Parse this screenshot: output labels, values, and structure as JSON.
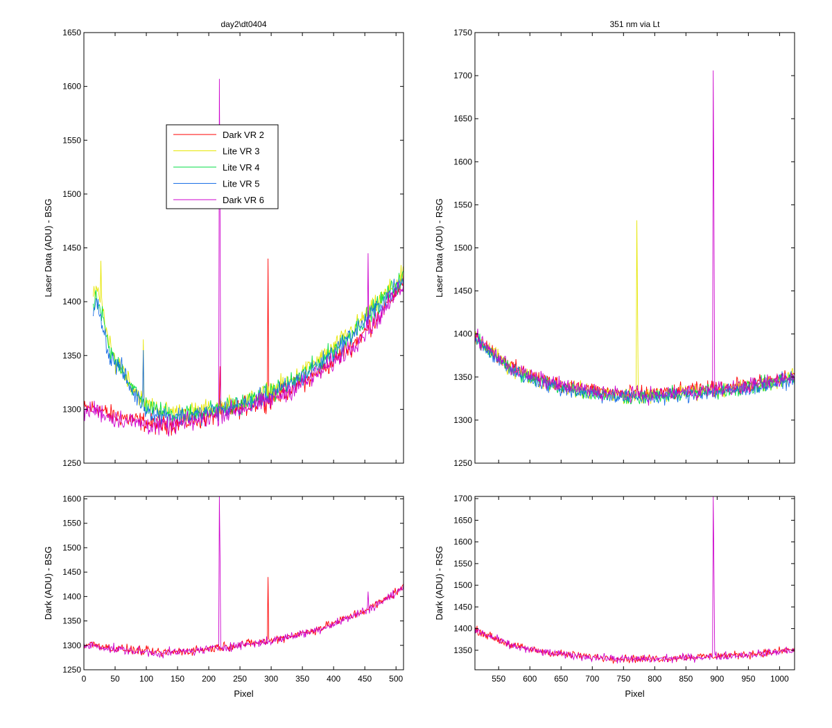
{
  "chart_data": [
    {
      "id": "top-left",
      "type": "line",
      "title": "day2\\dt0404",
      "xlabel": "",
      "ylabel": "Laser Data (ADU) - BSG",
      "xlim": [
        0,
        512
      ],
      "ylim": [
        1250,
        1650
      ],
      "yticks": [
        1250,
        1300,
        1350,
        1400,
        1450,
        1500,
        1550,
        1600,
        1650
      ],
      "xticks": [
        0,
        50,
        100,
        150,
        200,
        250,
        300,
        350,
        400,
        450,
        500
      ],
      "xtick_labels_visible": false,
      "legend": {
        "placement": "upper-center-left",
        "entries": [
          "Dark VR 2",
          "Lite VR 3",
          "Lite VR 4",
          "Lite VR 5",
          "Dark VR 6"
        ]
      },
      "series": [
        {
          "name": "Dark VR 2",
          "color": "#ff0000",
          "x": [
            0,
            20,
            40,
            60,
            80,
            100,
            120,
            140,
            160,
            180,
            200,
            220,
            240,
            260,
            280,
            300,
            320,
            340,
            360,
            380,
            400,
            420,
            440,
            460,
            480,
            500,
            512
          ],
          "y": [
            1300,
            1302,
            1295,
            1293,
            1290,
            1288,
            1285,
            1286,
            1288,
            1290,
            1293,
            1297,
            1300,
            1303,
            1306,
            1310,
            1316,
            1322,
            1328,
            1336,
            1345,
            1355,
            1366,
            1378,
            1392,
            1410,
            1420
          ],
          "spikes": [
            [
              295,
              1440
            ],
            [
              218,
              1340
            ]
          ]
        },
        {
          "name": "Lite VR 3",
          "color": "#e6e600",
          "x": [
            15,
            20,
            30,
            40,
            50,
            60,
            70,
            80,
            90,
            100,
            120,
            140,
            160,
            180,
            200,
            220,
            240,
            260,
            280,
            300,
            320,
            340,
            360,
            380,
            400,
            420,
            440,
            460,
            480,
            500,
            512
          ],
          "y": [
            1405,
            1410,
            1395,
            1360,
            1345,
            1340,
            1330,
            1320,
            1312,
            1305,
            1300,
            1298,
            1297,
            1298,
            1300,
            1302,
            1305,
            1308,
            1312,
            1318,
            1323,
            1330,
            1338,
            1347,
            1357,
            1368,
            1380,
            1392,
            1405,
            1418,
            1425
          ],
          "spikes": [
            [
              27,
              1438
            ],
            [
              95,
              1365
            ]
          ]
        },
        {
          "name": "Lite VR 4",
          "color": "#00dd44",
          "x": [
            15,
            20,
            30,
            40,
            50,
            60,
            70,
            80,
            90,
            100,
            120,
            140,
            160,
            180,
            200,
            220,
            240,
            260,
            280,
            300,
            320,
            340,
            360,
            380,
            400,
            420,
            440,
            460,
            480,
            500,
            512
          ],
          "y": [
            1395,
            1402,
            1385,
            1355,
            1345,
            1340,
            1328,
            1318,
            1310,
            1303,
            1298,
            1296,
            1296,
            1297,
            1299,
            1301,
            1304,
            1307,
            1311,
            1316,
            1321,
            1328,
            1336,
            1345,
            1355,
            1366,
            1378,
            1390,
            1403,
            1415,
            1422
          ],
          "spikes": []
        },
        {
          "name": "Lite VR 5",
          "color": "#1a6ee6",
          "x": [
            15,
            20,
            30,
            40,
            50,
            60,
            70,
            80,
            90,
            100,
            120,
            140,
            160,
            180,
            200,
            220,
            240,
            260,
            280,
            300,
            320,
            340,
            360,
            380,
            400,
            420,
            440,
            460,
            480,
            500,
            512
          ],
          "y": [
            1390,
            1400,
            1380,
            1350,
            1342,
            1338,
            1325,
            1315,
            1308,
            1300,
            1295,
            1294,
            1294,
            1295,
            1297,
            1299,
            1302,
            1305,
            1309,
            1314,
            1319,
            1326,
            1334,
            1343,
            1353,
            1364,
            1376,
            1388,
            1401,
            1413,
            1420
          ],
          "spikes": [
            [
              95,
              1355
            ]
          ]
        },
        {
          "name": "Dark VR 6",
          "color": "#cc00cc",
          "x": [
            0,
            20,
            40,
            60,
            80,
            100,
            120,
            140,
            160,
            180,
            200,
            220,
            240,
            260,
            280,
            300,
            320,
            340,
            360,
            380,
            400,
            420,
            440,
            460,
            480,
            500,
            512
          ],
          "y": [
            1298,
            1300,
            1293,
            1291,
            1288,
            1286,
            1284,
            1285,
            1287,
            1289,
            1292,
            1296,
            1299,
            1302,
            1305,
            1309,
            1315,
            1321,
            1327,
            1335,
            1344,
            1354,
            1365,
            1377,
            1391,
            1408,
            1418
          ],
          "spikes": [
            [
              217,
              1607
            ],
            [
              218,
              1480
            ],
            [
              455,
              1445
            ]
          ]
        }
      ]
    },
    {
      "id": "top-right",
      "type": "line",
      "title": "351 nm via Lt",
      "xlabel": "",
      "ylabel": "Laser Data (ADU) - RSG",
      "xlim": [
        512,
        1024
      ],
      "ylim": [
        1250,
        1750
      ],
      "yticks": [
        1250,
        1300,
        1350,
        1400,
        1450,
        1500,
        1550,
        1600,
        1650,
        1700,
        1750
      ],
      "xticks": [
        550,
        600,
        650,
        700,
        750,
        800,
        850,
        900,
        950,
        1000
      ],
      "xtick_labels_visible": false,
      "series": [
        {
          "name": "Dark VR 2",
          "color": "#ff0000",
          "x": [
            512,
            540,
            570,
            600,
            630,
            660,
            690,
            720,
            750,
            780,
            810,
            840,
            870,
            900,
            930,
            960,
            990,
            1024
          ],
          "y": [
            1398,
            1380,
            1362,
            1352,
            1345,
            1340,
            1336,
            1333,
            1331,
            1330,
            1331,
            1333,
            1335,
            1337,
            1339,
            1342,
            1346,
            1352
          ],
          "spikes": []
        },
        {
          "name": "Lite VR 3",
          "color": "#e6e600",
          "x": [
            512,
            540,
            570,
            600,
            630,
            660,
            690,
            720,
            750,
            780,
            810,
            840,
            870,
            900,
            930,
            960,
            990,
            1024
          ],
          "y": [
            1396,
            1378,
            1360,
            1350,
            1343,
            1338,
            1334,
            1331,
            1329,
            1328,
            1329,
            1331,
            1333,
            1335,
            1337,
            1340,
            1344,
            1350
          ],
          "spikes": [
            [
              771,
              1532
            ],
            [
              772,
              1440
            ]
          ]
        },
        {
          "name": "Lite VR 4",
          "color": "#00dd44",
          "x": [
            512,
            540,
            570,
            600,
            630,
            660,
            690,
            720,
            750,
            780,
            810,
            840,
            870,
            900,
            930,
            960,
            990,
            1024
          ],
          "y": [
            1395,
            1377,
            1359,
            1349,
            1342,
            1337,
            1333,
            1330,
            1328,
            1327,
            1328,
            1330,
            1332,
            1334,
            1336,
            1339,
            1343,
            1349
          ],
          "spikes": []
        },
        {
          "name": "Lite VR 5",
          "color": "#1a6ee6",
          "x": [
            512,
            540,
            570,
            600,
            630,
            660,
            690,
            720,
            750,
            780,
            810,
            840,
            870,
            900,
            930,
            960,
            990,
            1024
          ],
          "y": [
            1394,
            1376,
            1358,
            1348,
            1341,
            1336,
            1332,
            1329,
            1327,
            1326,
            1327,
            1329,
            1331,
            1333,
            1335,
            1338,
            1342,
            1348
          ],
          "spikes": []
        },
        {
          "name": "Dark VR 6",
          "color": "#cc00cc",
          "x": [
            512,
            540,
            570,
            600,
            630,
            660,
            690,
            720,
            750,
            780,
            810,
            840,
            870,
            900,
            930,
            960,
            990,
            1024
          ],
          "y": [
            1397,
            1379,
            1361,
            1351,
            1344,
            1339,
            1335,
            1332,
            1330,
            1329,
            1330,
            1332,
            1334,
            1336,
            1338,
            1341,
            1345,
            1351
          ],
          "spikes": [
            [
              894,
              1706
            ],
            [
              895,
              1548
            ]
          ]
        }
      ]
    },
    {
      "id": "bottom-left",
      "type": "line",
      "title": "",
      "xlabel": "Pixel",
      "ylabel": "Dark (ADU) - BSG",
      "xlim": [
        0,
        512
      ],
      "ylim": [
        1250,
        1605
      ],
      "yticks": [
        1250,
        1300,
        1350,
        1400,
        1450,
        1500,
        1550,
        1600
      ],
      "xticks": [
        0,
        50,
        100,
        150,
        200,
        250,
        300,
        350,
        400,
        450,
        500
      ],
      "xtick_labels_visible": true,
      "series": [
        {
          "name": "Dark VR 2",
          "color": "#ff0000",
          "x": [
            0,
            20,
            40,
            60,
            80,
            100,
            120,
            140,
            160,
            180,
            200,
            220,
            240,
            260,
            280,
            300,
            320,
            340,
            360,
            380,
            400,
            420,
            440,
            460,
            480,
            500,
            512
          ],
          "y": [
            1300,
            1302,
            1295,
            1293,
            1290,
            1288,
            1285,
            1286,
            1288,
            1290,
            1293,
            1297,
            1300,
            1303,
            1306,
            1310,
            1316,
            1322,
            1328,
            1336,
            1345,
            1355,
            1366,
            1378,
            1392,
            1410,
            1420
          ],
          "spikes": [
            [
              295,
              1440
            ]
          ]
        },
        {
          "name": "Dark VR 6",
          "color": "#cc00cc",
          "x": [
            0,
            20,
            40,
            60,
            80,
            100,
            120,
            140,
            160,
            180,
            200,
            220,
            240,
            260,
            280,
            300,
            320,
            340,
            360,
            380,
            400,
            420,
            440,
            460,
            480,
            500,
            512
          ],
          "y": [
            1298,
            1300,
            1293,
            1291,
            1288,
            1286,
            1284,
            1285,
            1287,
            1289,
            1292,
            1296,
            1299,
            1302,
            1305,
            1309,
            1315,
            1321,
            1327,
            1335,
            1344,
            1354,
            1365,
            1377,
            1391,
            1408,
            1418
          ],
          "spikes": [
            [
              217,
              1605
            ],
            [
              218,
              1480
            ],
            [
              455,
              1410
            ]
          ]
        }
      ]
    },
    {
      "id": "bottom-right",
      "type": "line",
      "title": "",
      "xlabel": "Pixel",
      "ylabel": "Dark (ADU) - RSG",
      "xlim": [
        512,
        1024
      ],
      "ylim": [
        1305,
        1705
      ],
      "yticks": [
        1350,
        1400,
        1450,
        1500,
        1550,
        1600,
        1650,
        1700
      ],
      "xticks": [
        550,
        600,
        650,
        700,
        750,
        800,
        850,
        900,
        950,
        1000
      ],
      "xtick_labels_visible": true,
      "series": [
        {
          "name": "Dark VR 2",
          "color": "#ff0000",
          "x": [
            512,
            540,
            570,
            600,
            630,
            660,
            690,
            720,
            750,
            780,
            810,
            840,
            870,
            900,
            930,
            960,
            990,
            1024
          ],
          "y": [
            1398,
            1380,
            1362,
            1352,
            1345,
            1340,
            1336,
            1333,
            1331,
            1330,
            1331,
            1333,
            1335,
            1337,
            1339,
            1342,
            1346,
            1352
          ],
          "spikes": []
        },
        {
          "name": "Dark VR 6",
          "color": "#cc00cc",
          "x": [
            512,
            540,
            570,
            600,
            630,
            660,
            690,
            720,
            750,
            780,
            810,
            840,
            870,
            900,
            930,
            960,
            990,
            1024
          ],
          "y": [
            1397,
            1379,
            1361,
            1351,
            1344,
            1339,
            1335,
            1332,
            1330,
            1329,
            1330,
            1332,
            1334,
            1336,
            1338,
            1341,
            1345,
            1351
          ],
          "spikes": [
            [
              894,
              1705
            ],
            [
              895,
              1545
            ]
          ]
        }
      ]
    }
  ]
}
